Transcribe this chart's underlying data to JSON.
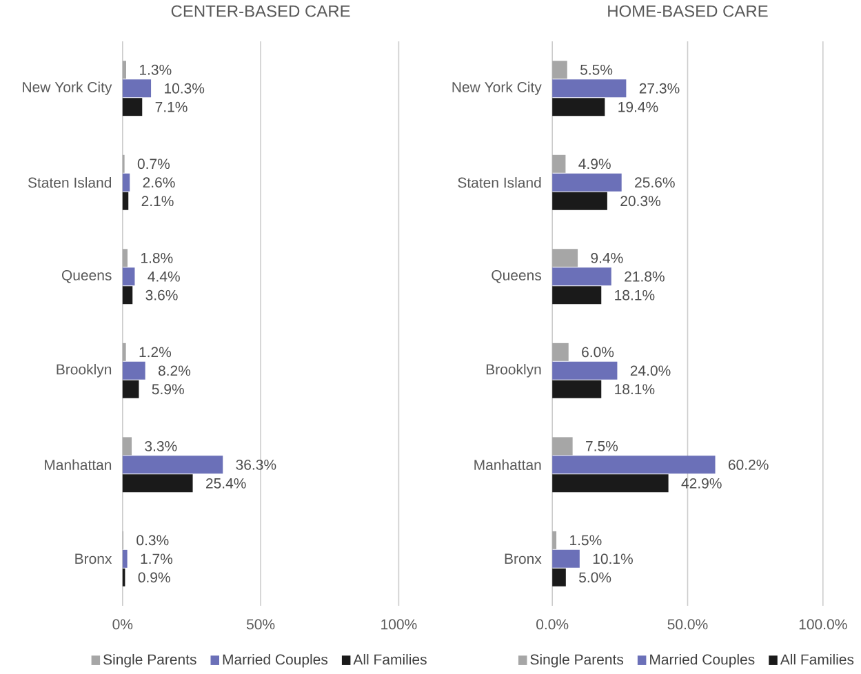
{
  "chart_data": [
    {
      "type": "bar",
      "orientation": "horizontal",
      "title": "CENTER-BASED CARE",
      "categories": [
        "New York City",
        "Staten Island",
        "Queens",
        "Brooklyn",
        "Manhattan",
        "Bronx"
      ],
      "series": [
        {
          "name": "Single Parents",
          "color": "#a6a6a6",
          "values": [
            1.3,
            0.7,
            1.8,
            1.2,
            3.3,
            0.3
          ],
          "value_labels": [
            "1.3%",
            "0.7%",
            "1.8%",
            "1.2%",
            "3.3%",
            "0.3%"
          ]
        },
        {
          "name": "Married Couples",
          "color": "#6b70b8",
          "values": [
            10.3,
            2.6,
            4.4,
            8.2,
            36.3,
            1.7
          ],
          "value_labels": [
            "10.3%",
            "2.6%",
            "4.4%",
            "8.2%",
            "36.3%",
            "1.7%"
          ]
        },
        {
          "name": "All Families",
          "color": "#1a1a1a",
          "values": [
            7.1,
            2.1,
            3.6,
            5.9,
            25.4,
            0.9
          ],
          "value_labels": [
            "7.1%",
            "2.1%",
            "3.6%",
            "5.9%",
            "25.4%",
            "0.9%"
          ]
        }
      ],
      "xlim": [
        0,
        100
      ],
      "xticks": [
        {
          "value": 0,
          "label": "0%"
        },
        {
          "value": 50,
          "label": "50%"
        },
        {
          "value": 100,
          "label": "100%"
        }
      ],
      "grid": "x",
      "legend": "bottom"
    },
    {
      "type": "bar",
      "orientation": "horizontal",
      "title": "HOME-BASED CARE",
      "categories": [
        "New York City",
        "Staten Island",
        "Queens",
        "Brooklyn",
        "Manhattan",
        "Bronx"
      ],
      "series": [
        {
          "name": "Single Parents",
          "color": "#a6a6a6",
          "values": [
            5.5,
            4.9,
            9.4,
            6.0,
            7.5,
            1.5
          ],
          "value_labels": [
            "5.5%",
            "4.9%",
            "9.4%",
            "6.0%",
            "7.5%",
            "1.5%"
          ]
        },
        {
          "name": "Married Couples",
          "color": "#6b70b8",
          "values": [
            27.3,
            25.6,
            21.8,
            24.0,
            60.2,
            10.1
          ],
          "value_labels": [
            "27.3%",
            "25.6%",
            "21.8%",
            "24.0%",
            "60.2%",
            "10.1%"
          ]
        },
        {
          "name": "All Families",
          "color": "#1a1a1a",
          "values": [
            19.4,
            20.3,
            18.1,
            18.1,
            42.9,
            5.0
          ],
          "value_labels": [
            "19.4%",
            "20.3%",
            "18.1%",
            "18.1%",
            "42.9%",
            "5.0%"
          ]
        }
      ],
      "xlim": [
        0,
        100
      ],
      "xticks": [
        {
          "value": 0,
          "label": "0.0%"
        },
        {
          "value": 50,
          "label": "50.0%"
        },
        {
          "value": 100,
          "label": "100.0%"
        }
      ],
      "grid": "x",
      "legend": "bottom"
    }
  ]
}
